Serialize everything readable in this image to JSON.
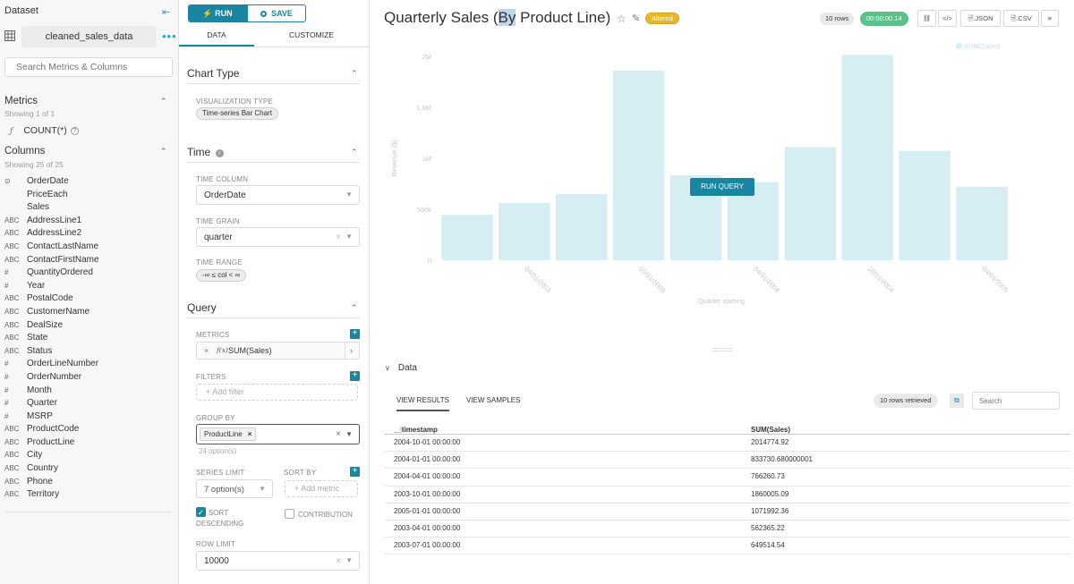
{
  "left_panel": {
    "heading": "Dataset",
    "collapse_icon": "⇤",
    "dataset_name": "cleaned_sales_data",
    "more": "•••",
    "search_placeholder": "Search Metrics & Columns",
    "metrics_title": "Metrics",
    "metrics_sub": "Showing 1 of 1",
    "metric_item": "COUNT(*)",
    "columns_title": "Columns",
    "columns_sub": "Showing 25 of 25",
    "columns": [
      {
        "type": "⊙",
        "name": "OrderDate"
      },
      {
        "type": "",
        "name": "PriceEach"
      },
      {
        "type": "",
        "name": "Sales"
      },
      {
        "type": "ABC",
        "name": "AddressLine1"
      },
      {
        "type": "ABC",
        "name": "AddressLine2"
      },
      {
        "type": "ABC",
        "name": "ContactLastName"
      },
      {
        "type": "ABC",
        "name": "ContactFirstName"
      },
      {
        "type": "#",
        "name": "QuantityOrdered"
      },
      {
        "type": "#",
        "name": "Year"
      },
      {
        "type": "ABC",
        "name": "PostalCode"
      },
      {
        "type": "ABC",
        "name": "CustomerName"
      },
      {
        "type": "ABC",
        "name": "DealSize"
      },
      {
        "type": "ABC",
        "name": "State"
      },
      {
        "type": "ABC",
        "name": "Status"
      },
      {
        "type": "#",
        "name": "OrderLineNumber"
      },
      {
        "type": "#",
        "name": "OrderNumber"
      },
      {
        "type": "#",
        "name": "Month"
      },
      {
        "type": "#",
        "name": "Quarter"
      },
      {
        "type": "#",
        "name": "MSRP"
      },
      {
        "type": "ABC",
        "name": "ProductCode"
      },
      {
        "type": "ABC",
        "name": "ProductLine"
      },
      {
        "type": "ABC",
        "name": "City"
      },
      {
        "type": "ABC",
        "name": "Country"
      },
      {
        "type": "ABC",
        "name": "Phone"
      },
      {
        "type": "ABC",
        "name": "Territory"
      }
    ]
  },
  "config": {
    "run_label": "RUN",
    "save_label": "SAVE",
    "tab_data": "DATA",
    "tab_customize": "CUSTOMIZE",
    "chart_type_title": "Chart Type",
    "viz_type_label": "VISUALIZATION TYPE",
    "viz_type_value": "Time-series Bar Chart",
    "time_title": "Time",
    "time_column_label": "TIME COLUMN",
    "time_column_value": "OrderDate",
    "time_grain_label": "TIME GRAIN",
    "time_grain_value": "quarter",
    "time_range_label": "TIME RANGE",
    "time_range_value": "-∞ ≤ col < ∞",
    "query_title": "Query",
    "metrics_label": "METRICS",
    "metric_value": "SUM(Sales)",
    "metric_fx": "f(x)",
    "filters_label": "FILTERS",
    "add_filter": "+ Add filter",
    "group_by_label": "GROUP BY",
    "group_by_value": "ProductLine",
    "group_by_options": "24 option(s)",
    "series_limit_label": "SERIES LIMIT",
    "series_limit_value": "7 option(s)",
    "sort_by_label": "SORT BY",
    "add_metric": "+ Add metric",
    "sort_desc_label_1": "SORT",
    "sort_desc_label_2": "DESCENDING",
    "sort_descending_checked": true,
    "contribution_label": "CONTRIBUTION",
    "contribution_checked": false,
    "row_limit_label": "ROW LIMIT",
    "row_limit_value": "10000"
  },
  "header": {
    "title_pre": "Quarterly Sales (",
    "title_hl": "By",
    "title_post": " Product Line)",
    "altered": "Altered",
    "rows_badge": "10 rows",
    "time_badge": "00:00:00.14",
    "json_label": ".JSON",
    "csv_label": ".CSV",
    "link_icon": "🔗",
    "embed_icon": "</>",
    "menu_icon": "≡"
  },
  "run_query_label": "RUN QUERY",
  "chart_data": {
    "type": "bar",
    "title": "Quarterly Sales (By Product Line)",
    "ylabel": "Revenue ($)",
    "xlabel": "Quarter starting",
    "legend": "SUM(Sales)",
    "legend_position": "top-right",
    "yticks": [
      "0",
      "500k",
      "1M",
      "1.5M",
      "2M"
    ],
    "ylim": [
      0,
      2000000
    ],
    "xtick_labels": [
      "04/01/2003",
      "10/01/2003",
      "04/01/2004",
      "10/01/2004",
      "04/01/2005"
    ],
    "categories": [
      "2003-01-01",
      "2003-04-01",
      "2003-07-01",
      "2003-10-01",
      "2004-01-01",
      "2004-04-01",
      "2004-07-01",
      "2004-10-01",
      "2005-01-01",
      "2005-04-01"
    ],
    "values": [
      445000,
      562365.22,
      649514.54,
      1860005.09,
      833730.68,
      766260.73,
      1110000,
      2014774.92,
      1071992.36,
      720000
    ],
    "color": "#d6eef3",
    "grid": false
  },
  "data_pane": {
    "title": "Data",
    "tab_results": "VIEW RESULTS",
    "tab_samples": "VIEW SAMPLES",
    "rows_retrieved": "10 rows retrieved",
    "search_placeholder": "Search",
    "columns": [
      "__timestamp",
      "SUM(Sales)"
    ],
    "rows": [
      [
        "2004-10-01 00:00:00",
        "2014774.92"
      ],
      [
        "2004-01-01 00:00:00",
        "833730.680000001"
      ],
      [
        "2004-04-01 00:00:00",
        "766260.73"
      ],
      [
        "2003-10-01 00:00:00",
        "1860005.09"
      ],
      [
        "2005-01-01 00:00:00",
        "1071992.36"
      ],
      [
        "2003-04-01 00:00:00",
        "562365.22"
      ],
      [
        "2003-07-01 00:00:00",
        "649514.54"
      ]
    ]
  }
}
